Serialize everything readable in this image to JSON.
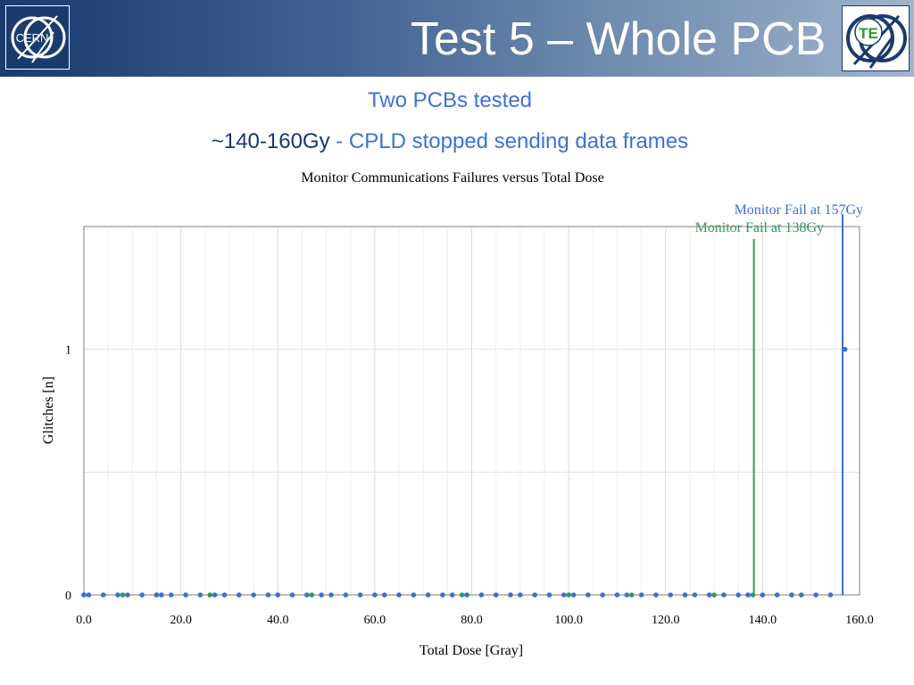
{
  "slide": {
    "title": "Test 5 – Whole PCB",
    "line1": "Two PCBs tested",
    "line2_highlight": "~140-160Gy",
    "line2_rest": " - CPLD stopped sending data frames",
    "logo_left_text": "CERN",
    "logo_right_text": "TE"
  },
  "colors": {
    "blue_series": "#3b6fd8",
    "green_series": "#2e9a5e",
    "accent_text": "#3a72d8",
    "dark_text": "#17357a"
  },
  "chart_data": {
    "type": "scatter",
    "title": "Monitor Communications Failures versus Total Dose",
    "xlabel": "Total Dose [Gray]",
    "ylabel": "Glitches [n]",
    "xlim": [
      0,
      160
    ],
    "ylim": [
      0,
      1.5
    ],
    "x_ticks": [
      "0.0",
      "20.0",
      "40.0",
      "60.0",
      "80.0",
      "100.0",
      "120.0",
      "140.0",
      "160.0"
    ],
    "y_ticks": [
      "0",
      "1"
    ],
    "grid": true,
    "series": [
      {
        "color": "#3b6fd8",
        "x": [
          0,
          1,
          4,
          7,
          9,
          12,
          15,
          16,
          18,
          21,
          24,
          27,
          29,
          32,
          35,
          38,
          40,
          43,
          46,
          49,
          51,
          54,
          57,
          60,
          62,
          65,
          68,
          71,
          74,
          76,
          79,
          82,
          85,
          88,
          90,
          93,
          96,
          99,
          101,
          104,
          107,
          110,
          112,
          115,
          118,
          121,
          124,
          126,
          129,
          132,
          135,
          137,
          140,
          143,
          146,
          148,
          151,
          154,
          157
        ],
        "y": [
          0,
          0,
          0,
          0,
          0,
          0,
          0,
          0,
          0,
          0,
          0,
          0,
          0,
          0,
          0,
          0,
          0,
          0,
          0,
          0,
          0,
          0,
          0,
          0,
          0,
          0,
          0,
          0,
          0,
          0,
          0,
          0,
          0,
          0,
          0,
          0,
          0,
          0,
          0,
          0,
          0,
          0,
          0,
          0,
          0,
          0,
          0,
          0,
          0,
          0,
          0,
          0,
          0,
          0,
          0,
          0,
          0,
          0,
          1
        ]
      },
      {
        "color": "#2e9a5e",
        "x": [
          0,
          8,
          15,
          26,
          47,
          78,
          100,
          113,
          130,
          138,
          146
        ],
        "y": [
          0,
          0,
          0,
          0,
          0,
          0,
          0,
          0,
          0,
          0,
          0
        ]
      }
    ],
    "annotations": [
      {
        "text": "Monitor Fail at 157Gy",
        "x": 156.5,
        "color": "#3b6fd8"
      },
      {
        "text": "Monitor Fail at 138Gy",
        "x": 138.2,
        "color": "#2e9a5e"
      }
    ]
  }
}
